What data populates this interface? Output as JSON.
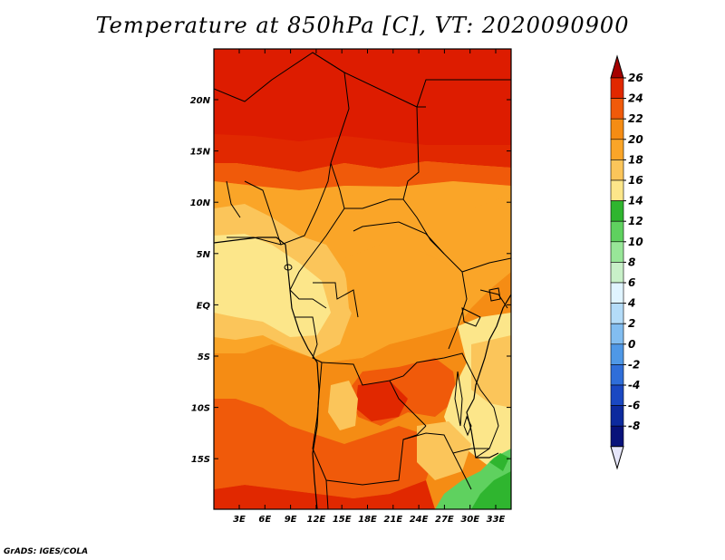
{
  "title": "Temperature at 850hPa [C], VT: 2020090900",
  "credit": "GrADS: IGES/COLA",
  "map": {
    "lat_labels": [
      "20N",
      "15N",
      "10N",
      "5N",
      "EQ",
      "5S",
      "10S",
      "15S"
    ],
    "lon_labels": [
      "3E",
      "6E",
      "9E",
      "12E",
      "15E",
      "18E",
      "21E",
      "24E",
      "27E",
      "30E",
      "33E"
    ]
  },
  "colorbar": {
    "labels": [
      "26",
      "24",
      "22",
      "20",
      "18",
      "16",
      "14",
      "12",
      "10",
      "8",
      "6",
      "4",
      "2",
      "0",
      "-2",
      "-4",
      "-6",
      "-8"
    ],
    "colors": [
      "#a50000",
      "#e12800",
      "#f05a0a",
      "#f58c14",
      "#faa528",
      "#fbc55a",
      "#fce68a",
      "#2fb52f",
      "#5fd15f",
      "#98e698",
      "#c8f0c8",
      "#e0f4ff",
      "#b4dcf8",
      "#82bdf0",
      "#4f98e6",
      "#2f6ed9",
      "#1a48c2",
      "#0d2a9e",
      "#08127a",
      "#e6e6fa"
    ]
  }
}
